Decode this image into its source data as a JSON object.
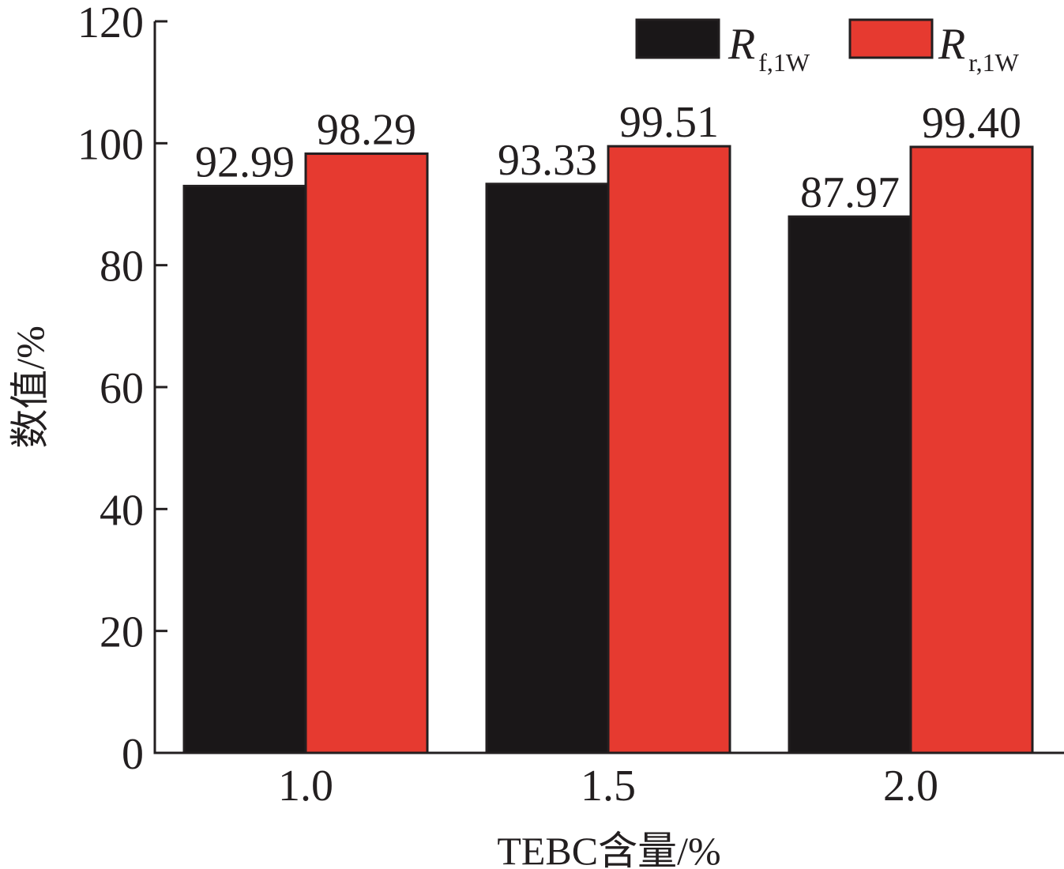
{
  "chart_data": {
    "type": "bar",
    "categories": [
      "1.0",
      "1.5",
      "2.0"
    ],
    "series": [
      {
        "name": "R f,1W",
        "name_main": "R",
        "name_sub": "f,1W",
        "color": "#1a1718",
        "values": [
          92.99,
          93.33,
          87.97
        ],
        "labels": [
          "92.99",
          "93.33",
          "87.97"
        ]
      },
      {
        "name": "R r,1W",
        "name_main": "R",
        "name_sub": "r,1W",
        "color": "#e63a30",
        "values": [
          98.29,
          99.51,
          99.4
        ],
        "labels": [
          "98.29",
          "99.51",
          "99.40"
        ]
      }
    ],
    "xlabel": "TEBC含量/%",
    "ylabel": "数值/%",
    "ylim": [
      0,
      120
    ],
    "yticks": [
      0,
      20,
      40,
      60,
      80,
      100,
      120
    ],
    "ytick_labels": [
      "0",
      "20",
      "40",
      "60",
      "80",
      "100",
      "120"
    ],
    "grid": false,
    "legend_position": "top-right"
  }
}
